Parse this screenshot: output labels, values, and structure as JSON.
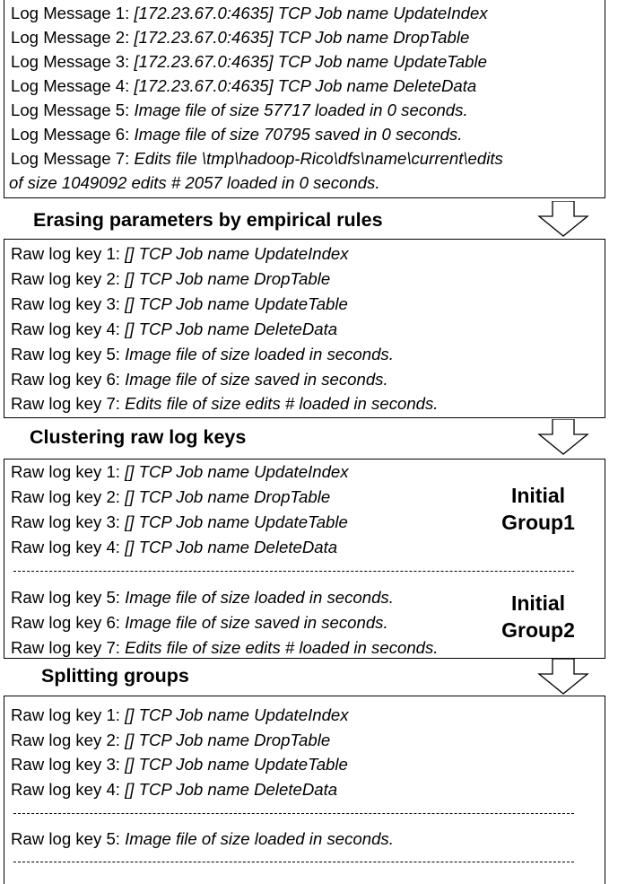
{
  "box1": {
    "lines": [
      {
        "label": "Log Message 1: ",
        "text": " [172.23.67.0:4635] TCP Job name UpdateIndex"
      },
      {
        "label": "Log Message 2: ",
        "text": " [172.23.67.0:4635] TCP Job name DropTable"
      },
      {
        "label": "Log Message 3: ",
        "text": " [172.23.67.0:4635] TCP Job name UpdateTable"
      },
      {
        "label": "Log Message 4: ",
        "text": " [172.23.67.0:4635] TCP Job name DeleteData"
      },
      {
        "label": "Log Message 5: ",
        "text": "Image file of size 57717 loaded in 0 seconds."
      },
      {
        "label": "Log Message 6: ",
        "text": "Image file of size 70795 saved in 0 seconds."
      },
      {
        "label": "Log Message 7: ",
        "text": "Edits file \\tmp\\hadoop-Rico\\dfs\\name\\current\\edits"
      },
      {
        "label": "",
        "text": "of size 1049092 edits # 2057 loaded in 0 seconds."
      }
    ]
  },
  "step1": "Erasing parameters by empirical rules",
  "box2": {
    "lines": [
      {
        "label": "Raw log key 1: ",
        "text": "[] TCP Job name UpdateIndex"
      },
      {
        "label": "Raw log key 2: ",
        "text": "[] TCP Job name DropTable"
      },
      {
        "label": "Raw log key 3: ",
        "text": " [] TCP Job name UpdateTable"
      },
      {
        "label": "Raw log key 4: ",
        "text": " [] TCP Job name DeleteData"
      },
      {
        "label": "Raw log key 5: ",
        "text": "Image file of size  loaded in  seconds."
      },
      {
        "label": "Raw log key 6: ",
        "text": "Image file of size  saved in  seconds."
      },
      {
        "label": "Raw log key 7: ",
        "text": "Edits file of size  edits #  loaded in  seconds."
      }
    ]
  },
  "step2": "Clustering raw log keys",
  "box3": {
    "group1_lines": [
      {
        "label": "Raw log key 1: ",
        "text": "[] TCP Job name UpdateIndex"
      },
      {
        "label": "Raw log key 2: ",
        "text": "[] TCP Job name DropTable"
      },
      {
        "label": "Raw log key 3: ",
        "text": " [] TCP Job name UpdateTable"
      },
      {
        "label": "Raw log key 4: ",
        "text": " [] TCP Job name DeleteData"
      }
    ],
    "group2_lines": [
      {
        "label": "Raw log key 5: ",
        "text": "Image file of size  loaded in  seconds."
      },
      {
        "label": "Raw log key 6: ",
        "text": "Image file of size  saved in  seconds."
      },
      {
        "label": "Raw log key 7: ",
        "text": "Edits file of size  edits #  loaded in  seconds."
      }
    ],
    "group1_label": [
      "Initial",
      "Group1"
    ],
    "group2_label": [
      "Initial",
      "Group2"
    ]
  },
  "step3": "Splitting groups",
  "box4": {
    "group1_lines": [
      {
        "label": "Raw log key 1: ",
        "text": "[] TCP Job name UpdateIndex"
      },
      {
        "label": "Raw log key 2: ",
        "text": "[] TCP Job name DropTable"
      },
      {
        "label": "Raw log key 3: ",
        "text": " [] TCP Job name UpdateTable"
      },
      {
        "label": "Raw log key 4: ",
        "text": " [] TCP Job name DeleteData"
      }
    ],
    "group2_lines": [
      {
        "label": "Raw log key 5: ",
        "text": "Image file of size  loaded in  seconds."
      }
    ]
  }
}
